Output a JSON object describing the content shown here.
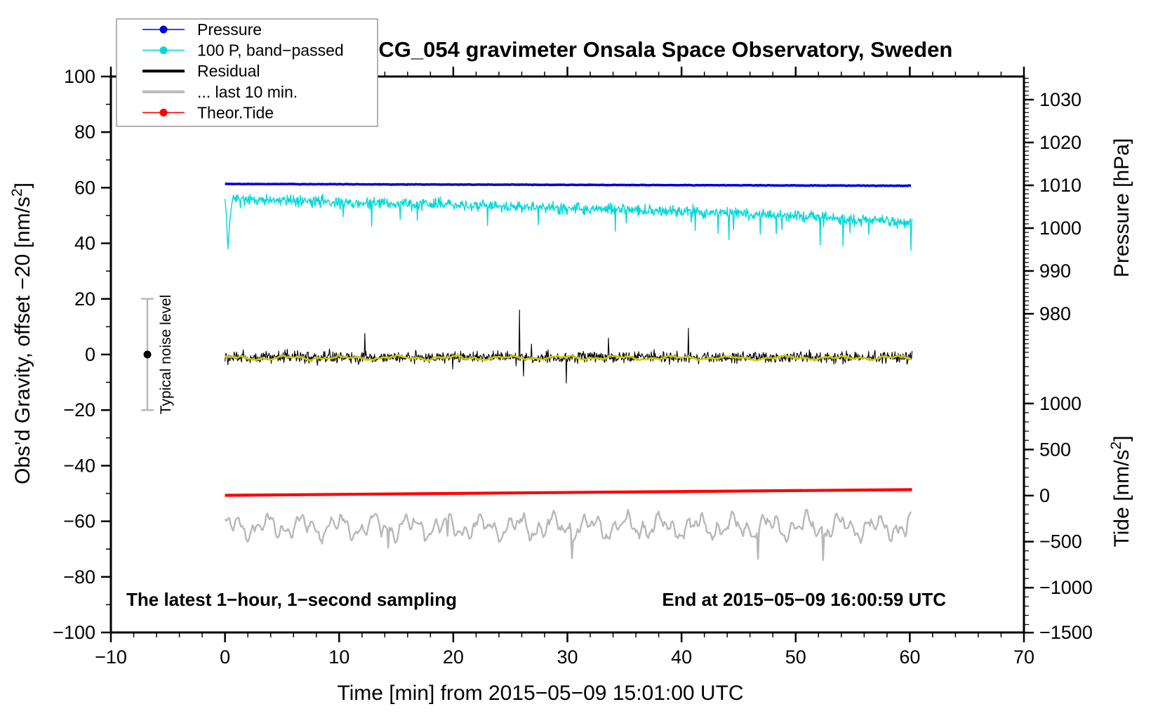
{
  "title": "SCG_054 gravimeter Onsala Space Observatory, Sweden",
  "footer_left": "The latest 1−hour, 1−second sampling",
  "footer_right": "End at 2015−05−09 16:00:59 UTC",
  "chart_data": {
    "type": "line",
    "title": "SCG_054 gravimeter Onsala Space Observatory, Sweden",
    "x_axis": {
      "label": "Time [min] from 2015−05−09 15:01:00 UTC",
      "min": -10,
      "max": 70,
      "major_ticks": [
        -10,
        0,
        10,
        20,
        30,
        40,
        50,
        60,
        70
      ],
      "minor_step": 2
    },
    "y_left_axis": {
      "label_parts": {
        "pre": "Obs’d Gravity, offset −20 [nm/s",
        "sup": "2",
        "post": "]"
      },
      "min": -100,
      "max": 100,
      "major_ticks": [
        -100,
        -80,
        -60,
        -40,
        -20,
        0,
        20,
        40,
        60,
        80,
        100
      ],
      "minor_step": 10
    },
    "y_right_pressure_axis": {
      "label": "Pressure [hPa]",
      "major_ticks": [
        980,
        990,
        1000,
        1010,
        1020,
        1030
      ],
      "minor_step": 1,
      "min": 971,
      "max": 1035
    },
    "y_right_tide_axis": {
      "label_parts": {
        "pre": "Tide [nm/s",
        "sup": "2",
        "post": "]"
      },
      "major_ticks": [
        -1500,
        -1000,
        -500,
        0,
        500,
        1000
      ],
      "minor_step": 100,
      "min": -1500,
      "max": 1500
    },
    "legend": [
      {
        "id": "pressure",
        "label": "Pressure",
        "color": "#0000dd",
        "marker": true,
        "line_width": 1.6
      },
      {
        "id": "band_passed",
        "label": "100 P, band−passed",
        "color": "#00d9d9",
        "marker": true,
        "line_width": 1.6
      },
      {
        "id": "residual",
        "label": "Residual",
        "color": "#000000",
        "marker": false,
        "line_width": 4
      },
      {
        "id": "last_10_min",
        "label": "... last 10 min.",
        "color": "#b8b8b8",
        "marker": false,
        "line_width": 4
      },
      {
        "id": "theor_tide",
        "label": "Theor.Tide",
        "color": "#ff0000",
        "marker": true,
        "line_width": 1.6
      }
    ],
    "noise_annotation": {
      "label": "Typical noise level",
      "x": -6.8,
      "center_value": 0,
      "half_range": 20,
      "bar_color": "#b9b9b9",
      "dot_color": "#000000"
    },
    "series": [
      {
        "id": "pressure",
        "name": "Pressure",
        "color": "#0000dd",
        "width": 3.5,
        "x_start": 0,
        "x_end": 60.2,
        "trend": [
          [
            0,
            61.35
          ],
          [
            60.2,
            60.7
          ]
        ],
        "noise_amp": 0.1,
        "pressure_hpa_start_end": [
          1010.4,
          1009.6
        ]
      },
      {
        "id": "band_passed",
        "name": "100 P, band-passed",
        "color": "#00d9d9",
        "width": 1.4,
        "x_start": 0,
        "x_end": 60.2,
        "trend": [
          [
            0,
            56
          ],
          [
            10,
            54.8
          ],
          [
            20,
            53.8
          ],
          [
            30,
            52.6
          ],
          [
            40,
            51.6
          ],
          [
            50,
            50
          ],
          [
            55,
            48.6
          ],
          [
            60.2,
            47.6
          ]
        ],
        "noise_amp": 2.0,
        "spike_amp": 7,
        "start_dip_value": 38
      },
      {
        "id": "residual",
        "name": "Residual",
        "color": "#000000",
        "width": 1.1,
        "x_start": 0,
        "x_end": 60.2,
        "trend": [
          [
            0,
            -1
          ],
          [
            60.2,
            -1
          ]
        ],
        "noise_amp": 2.1,
        "spike_amp": 11,
        "max_spike": [
          25.8,
          16
        ]
      },
      {
        "id": "residual_smoothed",
        "name": "Residual smoothed",
        "color": "#cbcb00",
        "width": 2.6,
        "x_start": 0,
        "x_end": 60.2,
        "trend": [
          [
            0,
            -1.25
          ],
          [
            60.2,
            -1.2
          ]
        ],
        "noise_amp": 0.35
      },
      {
        "id": "last_10_min",
        "name": "... last 10 min.",
        "color": "#b8b8b8",
        "width": 2.4,
        "x_start": 0,
        "x_end": 60.2,
        "trend": [
          [
            0,
            -62
          ],
          [
            60.2,
            -62
          ]
        ],
        "noise_amp": 1.1,
        "wave_amps": [
          2.6,
          2.0,
          1.3
        ],
        "spike_amp": 7
      },
      {
        "id": "theor_tide",
        "name": "Theor.Tide",
        "color": "#ff0000",
        "width": 4.2,
        "x_start": 0,
        "x_end": 60.2,
        "trend": [
          [
            0,
            -50.65
          ],
          [
            60.2,
            -48.6
          ]
        ],
        "noise_amp": 0,
        "tide_axis_values_start_end": [
          -20,
          60
        ]
      }
    ]
  }
}
